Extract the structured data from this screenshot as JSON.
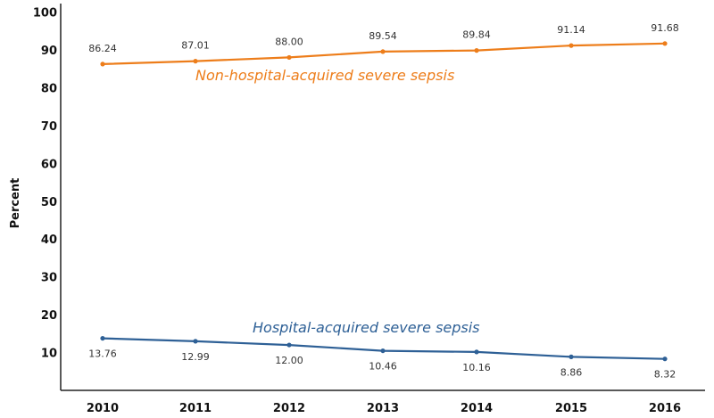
{
  "chart_data": {
    "type": "line",
    "title": "",
    "xlabel": "",
    "ylabel": "Percent",
    "x": [
      "2010",
      "2011",
      "2012",
      "2013",
      "2014",
      "2015",
      "2016"
    ],
    "ylim": [
      0,
      100
    ],
    "yticks": [
      "10",
      "20",
      "30",
      "40",
      "50",
      "60",
      "70",
      "80",
      "90",
      "100"
    ],
    "grid": false,
    "series": [
      {
        "name": "Non-hospital-acquired severe sepsis",
        "color": "#ed7d1a",
        "values": [
          86.24,
          87.01,
          88.0,
          89.54,
          89.84,
          91.14,
          91.68
        ],
        "labels": [
          "86.24",
          "87.01",
          "88.00",
          "89.54",
          "89.84",
          "91.14",
          "91.68"
        ]
      },
      {
        "name": "Hospital-acquired severe sepsis",
        "color": "#2e6096",
        "values": [
          13.76,
          12.99,
          12.0,
          10.46,
          10.16,
          8.86,
          8.32
        ],
        "labels": [
          "13.76",
          "12.99",
          "12.00",
          "10.46",
          "10.16",
          "8.86",
          "8.32"
        ]
      }
    ]
  }
}
